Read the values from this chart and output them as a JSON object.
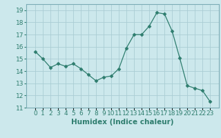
{
  "x": [
    0,
    1,
    2,
    3,
    4,
    5,
    6,
    7,
    8,
    9,
    10,
    11,
    12,
    13,
    14,
    15,
    16,
    17,
    18,
    19,
    20,
    21,
    22,
    23
  ],
  "y": [
    15.6,
    15.0,
    14.3,
    14.6,
    14.4,
    14.6,
    14.2,
    13.7,
    13.2,
    13.5,
    13.6,
    14.2,
    15.9,
    17.0,
    17.0,
    17.7,
    18.8,
    18.7,
    17.3,
    15.1,
    12.8,
    12.6,
    12.4,
    11.5
  ],
  "line_color": "#2e7d6e",
  "marker": "D",
  "marker_size": 2.5,
  "bg_color": "#cce8ec",
  "grid_color": "#aacdd4",
  "xlabel": "Humidex (Indice chaleur)",
  "ylim": [
    11,
    19.5
  ],
  "yticks": [
    11,
    12,
    13,
    14,
    15,
    16,
    17,
    18,
    19
  ],
  "xticks": [
    0,
    1,
    2,
    3,
    4,
    5,
    6,
    7,
    8,
    9,
    10,
    11,
    12,
    13,
    14,
    15,
    16,
    17,
    18,
    19,
    20,
    21,
    22,
    23
  ],
  "xtick_labels": [
    "0",
    "1",
    "2",
    "3",
    "4",
    "5",
    "6",
    "7",
    "8",
    "9",
    "10",
    "11",
    "12",
    "13",
    "14",
    "15",
    "16",
    "17",
    "18",
    "19",
    "20",
    "21",
    "22",
    "23"
  ],
  "font_size": 6.5,
  "xlabel_fontsize": 7.5,
  "xlabel_color": "#2e7d6e",
  "tick_color": "#2e7d6e",
  "spine_color": "#7aacb5"
}
